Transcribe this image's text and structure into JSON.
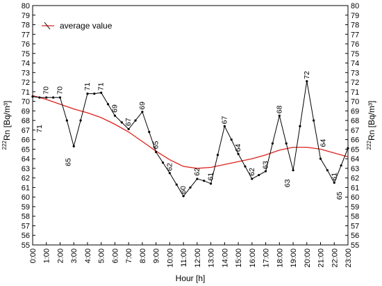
{
  "chart_data": {
    "type": "line",
    "xlabel": "Hour [h]",
    "ylabel": "Rn [Bq/m³]",
    "ylabel_superscript": "222",
    "ylim": [
      55,
      80
    ],
    "y_ticks": [
      55,
      56,
      57,
      58,
      59,
      60,
      61,
      62,
      63,
      64,
      65,
      66,
      67,
      68,
      69,
      70,
      71,
      72,
      73,
      74,
      75,
      76,
      77,
      78,
      79,
      80
    ],
    "x_tick_labels": [
      "0:00",
      "1:00",
      "2:00",
      "3:00",
      "4:00",
      "5:00",
      "6:00",
      "7:00",
      "8:00",
      "9:00",
      "10:00",
      "11:00",
      "12:00",
      "13:00",
      "14:00",
      "15:00",
      "16:00",
      "17:00",
      "18:00",
      "19:00",
      "20:00",
      "21:00",
      "22:00",
      "23:00"
    ],
    "grid": false,
    "legend_position": "top-left",
    "series": [
      {
        "kind": "measured",
        "color": "#000000",
        "x": [
          0,
          0.5,
          1.0,
          1.5,
          2.0,
          2.5,
          3.0,
          3.5,
          4.0,
          4.5,
          5.0,
          5.5,
          6.0,
          6.5,
          7.0,
          7.5,
          8.0,
          8.5,
          9.0,
          9.5,
          10.0,
          10.5,
          11.0,
          11.5,
          12.0,
          12.5,
          13.0,
          13.5,
          14.0,
          14.5,
          15.0,
          15.5,
          16.0,
          16.5,
          17.0,
          17.5,
          18.0,
          18.5,
          19.0,
          19.5,
          20.0,
          20.5,
          21.0,
          21.5,
          22.0,
          22.5,
          23.0
        ],
        "y": [
          70.5,
          70.4,
          70.4,
          70.4,
          70.4,
          68.0,
          65.3,
          68.0,
          70.8,
          70.8,
          70.9,
          69.7,
          68.5,
          67.8,
          67.1,
          68.0,
          68.9,
          66.8,
          64.7,
          63.6,
          62.5,
          61.3,
          60.1,
          61.0,
          61.9,
          61.7,
          61.4,
          64.4,
          67.4,
          66.0,
          64.5,
          63.2,
          61.9,
          62.3,
          62.7,
          65.6,
          68.5,
          65.6,
          62.8,
          67.4,
          72.1,
          68.0,
          64.0,
          62.8,
          61.5,
          63.3,
          65.1
        ],
        "labels": [
          {
            "text": "71",
            "x": 0.5,
            "y": 66.5
          },
          {
            "text": "70",
            "x": 1.0,
            "y": 70.5
          },
          {
            "text": "70",
            "x": 2.0,
            "y": 70.5
          },
          {
            "text": "65",
            "x": 2.6,
            "y": 63.0
          },
          {
            "text": "71",
            "x": 4.0,
            "y": 70.9
          },
          {
            "text": "71",
            "x": 5.0,
            "y": 70.9
          },
          {
            "text": "69",
            "x": 6.0,
            "y": 68.6
          },
          {
            "text": "67",
            "x": 7.0,
            "y": 67.2
          },
          {
            "text": "69",
            "x": 8.0,
            "y": 68.9
          },
          {
            "text": "65",
            "x": 9.0,
            "y": 64.8
          },
          {
            "text": "62",
            "x": 10.0,
            "y": 62.5
          },
          {
            "text": "60",
            "x": 11.0,
            "y": 60.1
          },
          {
            "text": "62",
            "x": 12.0,
            "y": 62.0
          },
          {
            "text": "61",
            "x": 13.0,
            "y": 61.5
          },
          {
            "text": "67",
            "x": 14.0,
            "y": 67.4
          },
          {
            "text": "64",
            "x": 15.0,
            "y": 64.5
          },
          {
            "text": "62",
            "x": 16.0,
            "y": 62.0
          },
          {
            "text": "63",
            "x": 17.0,
            "y": 62.7
          },
          {
            "text": "68",
            "x": 18.0,
            "y": 68.5
          },
          {
            "text": "63",
            "x": 18.6,
            "y": 60.8
          },
          {
            "text": "72",
            "x": 20.0,
            "y": 72.1
          },
          {
            "text": "64",
            "x": 21.2,
            "y": 65.0
          },
          {
            "text": "61",
            "x": 22.0,
            "y": 61.5
          },
          {
            "text": "65",
            "x": 22.4,
            "y": 59.5
          }
        ]
      },
      {
        "name": "average value",
        "kind": "average",
        "color": "#e0201b",
        "x": [
          0,
          1,
          2,
          3,
          4,
          5,
          6,
          7,
          8,
          9,
          10,
          11,
          12,
          13,
          14,
          15,
          16,
          17,
          18,
          19,
          20,
          21,
          22,
          23
        ],
        "y": [
          70.6,
          70.2,
          69.7,
          69.2,
          68.8,
          68.3,
          67.6,
          66.8,
          65.8,
          64.8,
          63.9,
          63.2,
          63.0,
          63.1,
          63.4,
          63.7,
          64.0,
          64.4,
          64.9,
          65.2,
          65.2,
          65.0,
          64.6,
          64.2
        ]
      }
    ]
  }
}
